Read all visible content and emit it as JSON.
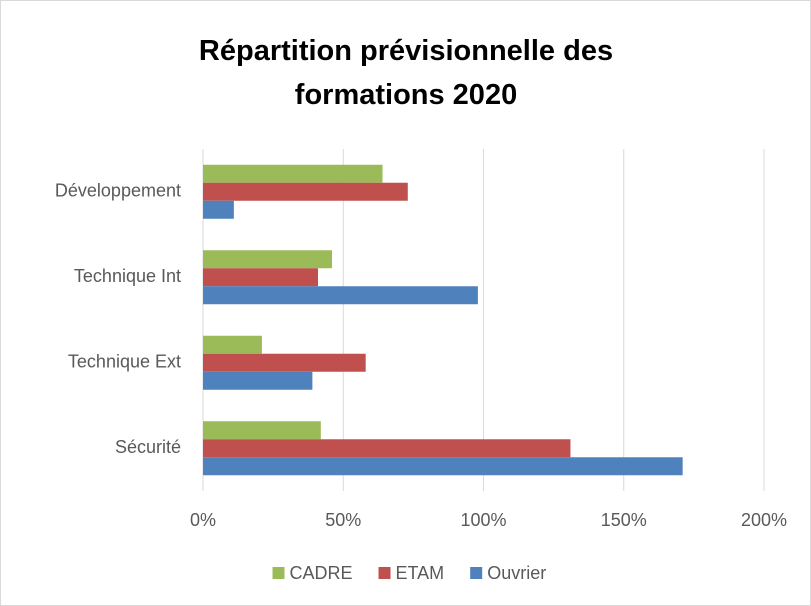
{
  "chart_data": {
    "type": "bar",
    "orientation": "horizontal",
    "title": "Répartition prévisionnelle des formations 2020",
    "categories": [
      "Développement",
      "Technique Int",
      "Technique Ext",
      "Sécurité"
    ],
    "series": [
      {
        "name": "CADRE",
        "color": "#9bbb59",
        "values": [
          64,
          46,
          21,
          42
        ]
      },
      {
        "name": "ETAM",
        "color": "#c0504d",
        "values": [
          73,
          41,
          58,
          131
        ]
      },
      {
        "name": "Ouvrier",
        "color": "#4f81bd",
        "values": [
          11,
          98,
          39,
          171
        ]
      }
    ],
    "xlim": [
      0,
      200
    ],
    "xticks": [
      {
        "value": 0,
        "label": "0%"
      },
      {
        "value": 50,
        "label": "50%"
      },
      {
        "value": 100,
        "label": "100%"
      },
      {
        "value": 150,
        "label": "150%"
      },
      {
        "value": 200,
        "label": "200%"
      }
    ],
    "grid": true,
    "legend": "bottom"
  }
}
